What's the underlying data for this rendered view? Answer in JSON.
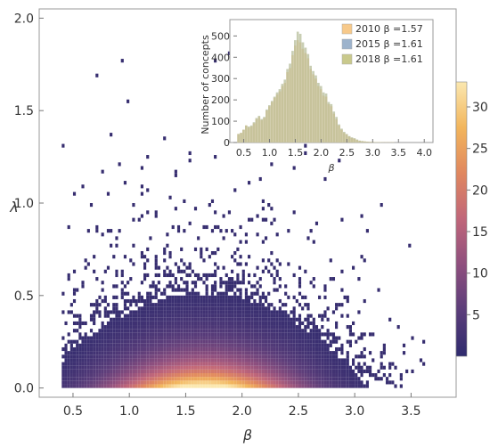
{
  "chart_data": [
    {
      "type": "heatmap",
      "xlabel": "β",
      "ylabel": "λ",
      "xlim": [
        0.2,
        3.9
      ],
      "ylim": [
        -0.05,
        2.05
      ],
      "xticks": [
        "0.5",
        "1.0",
        "1.5",
        "2.0",
        "2.5",
        "3.0",
        "3.5"
      ],
      "xtick_values": [
        0.5,
        1.0,
        1.5,
        2.0,
        2.5,
        3.0,
        3.5
      ],
      "yticks": [
        "0.0",
        "0.5",
        "1.0",
        "1.5",
        "2.0"
      ],
      "ytick_values": [
        0.0,
        0.5,
        1.0,
        1.5,
        2.0
      ],
      "bin_size": {
        "x": 0.025,
        "y": 0.02
      },
      "density_center": {
        "beta": 1.65,
        "lambda": 0.02
      },
      "colorbar": {
        "min": 0,
        "max": 33,
        "ticks": [
          "5",
          "10",
          "15",
          "20",
          "25",
          "30"
        ],
        "tick_values": [
          5,
          10,
          15,
          20,
          25,
          30
        ],
        "colors": [
          "#2f2b6e",
          "#5b3d7a",
          "#8e4f7e",
          "#c0667a",
          "#e0875f",
          "#f2b55c",
          "#fbe8b0"
        ]
      }
    },
    {
      "type": "bar",
      "ylabel": "Number of concepts",
      "xlabel": "β",
      "xlim": [
        0.3,
        4.1
      ],
      "ylim": [
        0,
        560
      ],
      "xticks": [
        "0.5",
        "1.0",
        "1.5",
        "2.0",
        "2.5",
        "3.0",
        "3.5",
        "4.0"
      ],
      "xtick_values": [
        0.5,
        1.0,
        1.5,
        2.0,
        2.5,
        3.0,
        3.5,
        4.0
      ],
      "yticks": [
        "0",
        "100",
        "200",
        "300",
        "400",
        "500"
      ],
      "ytick_values": [
        0,
        100,
        200,
        300,
        400,
        500
      ],
      "bin_width": 0.05,
      "x": [
        0.4,
        0.45,
        0.5,
        0.55,
        0.6,
        0.65,
        0.7,
        0.75,
        0.8,
        0.85,
        0.9,
        0.95,
        1.0,
        1.05,
        1.1,
        1.15,
        1.2,
        1.25,
        1.3,
        1.35,
        1.4,
        1.45,
        1.5,
        1.55,
        1.6,
        1.65,
        1.7,
        1.75,
        1.8,
        1.85,
        1.9,
        1.95,
        2.0,
        2.05,
        2.1,
        2.15,
        2.2,
        2.25,
        2.3,
        2.35,
        2.4,
        2.45,
        2.5,
        2.55,
        2.6,
        2.65,
        2.7,
        2.75,
        2.8,
        2.85,
        2.9,
        2.95,
        3.0,
        3.05,
        3.1,
        3.15,
        3.2,
        3.25,
        3.3,
        3.35,
        3.4,
        3.45,
        3.5,
        3.55,
        3.6,
        3.65,
        3.7,
        3.75,
        3.8,
        3.85,
        3.9,
        3.95,
        4.0
      ],
      "series": [
        {
          "name": "2010",
          "beta_label": "β =1.57",
          "color": "#f7c98a",
          "values": [
            40,
            45,
            60,
            80,
            70,
            75,
            90,
            110,
            120,
            105,
            115,
            150,
            170,
            190,
            210,
            225,
            240,
            265,
            280,
            330,
            350,
            410,
            455,
            480,
            470,
            440,
            420,
            395,
            345,
            320,
            300,
            265,
            250,
            220,
            215,
            180,
            170,
            135,
            110,
            80,
            60,
            45,
            38,
            28,
            22,
            18,
            12,
            8,
            6,
            5,
            4,
            3,
            3,
            2,
            2,
            2,
            1,
            1,
            1,
            1,
            1,
            0,
            0,
            0,
            0,
            0,
            0,
            0,
            0,
            0,
            0,
            0,
            0
          ]
        },
        {
          "name": "2015",
          "beta_label": "β =1.61",
          "color": "#9db3cc",
          "values": [
            40,
            45,
            60,
            80,
            75,
            80,
            95,
            115,
            125,
            110,
            120,
            155,
            175,
            195,
            215,
            235,
            250,
            275,
            295,
            345,
            370,
            430,
            480,
            520,
            510,
            470,
            445,
            415,
            360,
            335,
            315,
            280,
            265,
            235,
            230,
            190,
            180,
            145,
            120,
            85,
            65,
            50,
            40,
            30,
            24,
            20,
            14,
            9,
            7,
            5,
            4,
            3,
            3,
            2,
            2,
            2,
            1,
            1,
            1,
            1,
            1,
            0,
            0,
            0,
            0,
            0,
            0,
            0,
            0,
            0,
            0,
            0,
            0
          ]
        },
        {
          "name": "2018",
          "beta_label": "β =1.61",
          "color": "#c9c98c",
          "values": [
            40,
            45,
            60,
            80,
            75,
            80,
            95,
            115,
            125,
            110,
            120,
            155,
            175,
            195,
            215,
            235,
            250,
            275,
            295,
            345,
            370,
            430,
            480,
            520,
            510,
            470,
            445,
            415,
            360,
            335,
            315,
            280,
            265,
            235,
            230,
            190,
            180,
            145,
            120,
            85,
            65,
            50,
            40,
            30,
            24,
            20,
            14,
            9,
            7,
            5,
            4,
            3,
            3,
            2,
            2,
            2,
            1,
            1,
            1,
            1,
            1,
            0,
            0,
            0,
            0,
            0,
            0,
            0,
            0,
            0,
            0,
            0,
            0
          ]
        }
      ],
      "legend": "top-right"
    }
  ]
}
